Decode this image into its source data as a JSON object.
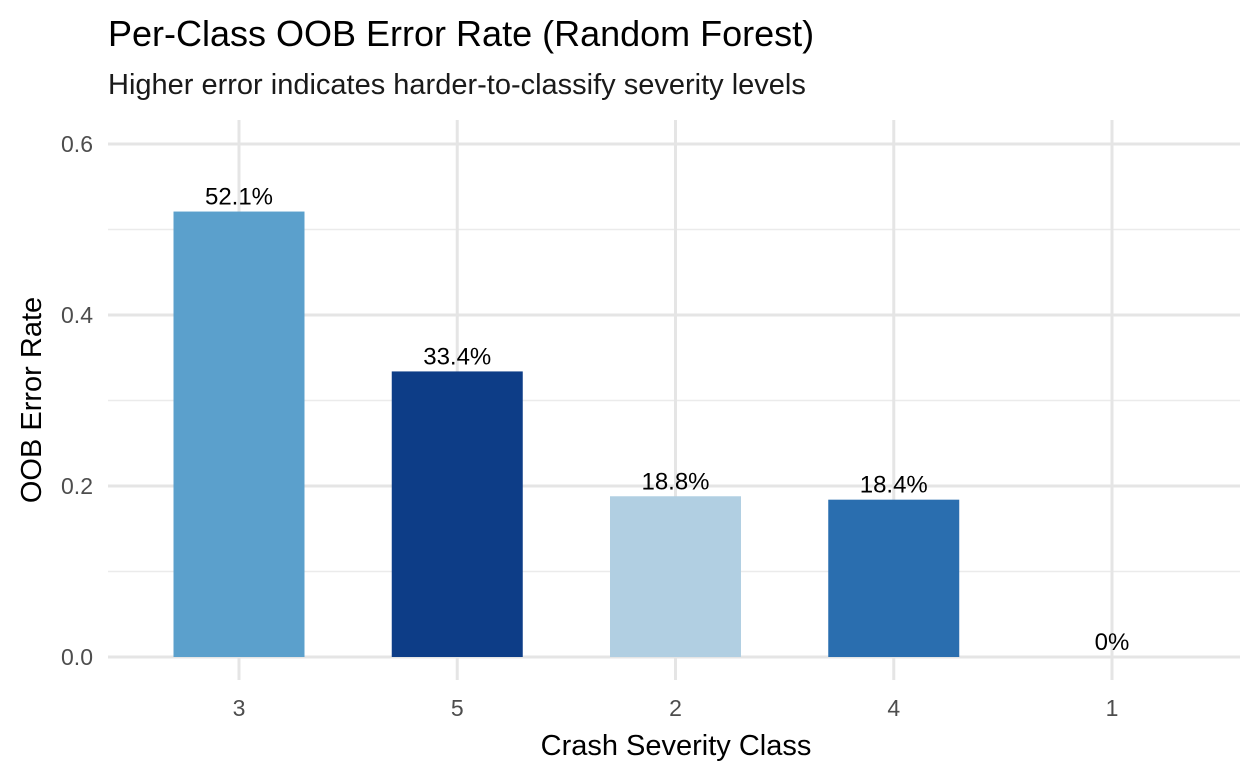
{
  "chart_data": {
    "type": "bar",
    "title": "Per-Class OOB Error Rate (Random Forest)",
    "subtitle": "Higher error indicates harder-to-classify severity levels",
    "xlabel": "Crash Severity Class",
    "ylabel": "OOB Error Rate",
    "categories": [
      "3",
      "5",
      "2",
      "4",
      "1"
    ],
    "values": [
      0.521,
      0.334,
      0.188,
      0.184,
      0.0
    ],
    "data_labels": [
      "52.1%",
      "33.4%",
      "18.8%",
      "18.4%",
      "0%"
    ],
    "colors": [
      "#5BA0CC",
      "#0D3D87",
      "#B1CFE2",
      "#2A6EAF",
      "#F1F6FB"
    ],
    "ylim": [
      0,
      0.6
    ],
    "y_ticks": [
      0,
      0.2,
      0.4,
      0.6
    ],
    "y_tick_labels": [
      "0.0",
      "0.2",
      "0.4",
      "0.6"
    ],
    "grid": true,
    "legend": "none"
  }
}
